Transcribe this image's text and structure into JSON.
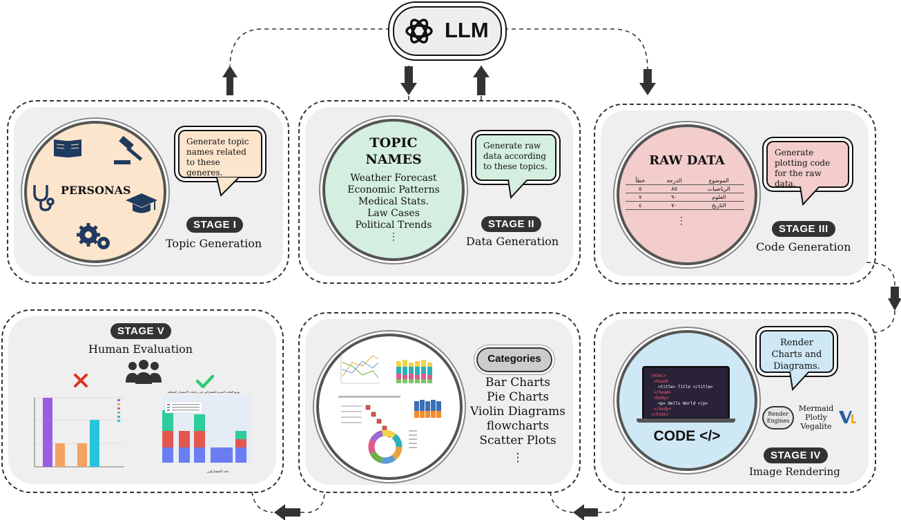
{
  "llm": {
    "label": "LLM",
    "icon": "openai-logo-icon"
  },
  "stage1": {
    "badge": "STAGE I",
    "caption": "Topic Generation",
    "circle_title": "PERSONAS",
    "bubble": "Generate topic names related to these generes.",
    "colors": {
      "circle": "#fce5cd",
      "bubble": "#fce5cd"
    }
  },
  "stage2": {
    "badge": "STAGE II",
    "caption": "Data Generation",
    "circle_title_1": "TOPIC",
    "circle_title_2": "NAMES",
    "topics": [
      "Weather Forecast",
      "Economic Patterns",
      "Medical Stats.",
      "Law Cases",
      "Political Trends"
    ],
    "ellipsis": "⋮",
    "bubble": "Generate raw data according to these topics.",
    "colors": {
      "circle": "#d4efe0",
      "bubble": "#d4efe0"
    }
  },
  "stage3": {
    "badge": "STAGE III",
    "caption": "Code Generation",
    "circle_title": "RAW DATA",
    "table": {
      "headers": [
        "الموضوع",
        "الدرجة",
        "خطأ"
      ],
      "rows": [
        [
          "الرياضيات",
          "٨٥",
          "٥"
        ],
        [
          "العلوم",
          "٩٠",
          "٧"
        ],
        [
          "التاريخ",
          "٧٠",
          "٤"
        ]
      ]
    },
    "ellipsis": "⋮",
    "bubble": "Generate plotting code for the raw data.",
    "colors": {
      "circle": "#f2cdcb",
      "bubble": "#f2cdcb"
    }
  },
  "stage4": {
    "badge": "STAGE IV",
    "caption": "Image Rendering",
    "circle_title": "CODE </>",
    "code_lines": [
      "<html>",
      "<head>",
      "<title> Title </title>",
      "</head>",
      "<body>",
      "<p> Hello World </p>",
      "</body>",
      "</html>"
    ],
    "bubble": "Render Charts and Diagrams.",
    "engines_label_1": "Render",
    "engines_label_2": "Engines",
    "engines": [
      "Mermaid",
      "Plotly",
      "Vegalite"
    ],
    "colors": {
      "circle": "#cfe8f5",
      "bubble": "#cfe8f5",
      "screen": "#2a2238"
    }
  },
  "stage5": {
    "badge": "STAGE V",
    "caption": "Human Evaluation",
    "reject_icon": "cross-icon",
    "accept_icon": "check-icon",
    "colors": {
      "reject": "#e0301e",
      "accept": "#2ecc71"
    },
    "bad_chart_values": [
      0.9,
      0.3,
      0.3,
      0.6
    ],
    "good_chart_title": "توزيع الفئات العمرية للمشاركين في دراسات الاستقرار المختلفة",
    "good_chart_xlabel": "عدد المشاركين"
  },
  "categories": {
    "badge": "Categories",
    "items": [
      "Bar Charts",
      "Pie Charts",
      "Violin Diagrams",
      "flowcharts",
      "Scatter Plots"
    ],
    "ellipsis": "⋮"
  }
}
